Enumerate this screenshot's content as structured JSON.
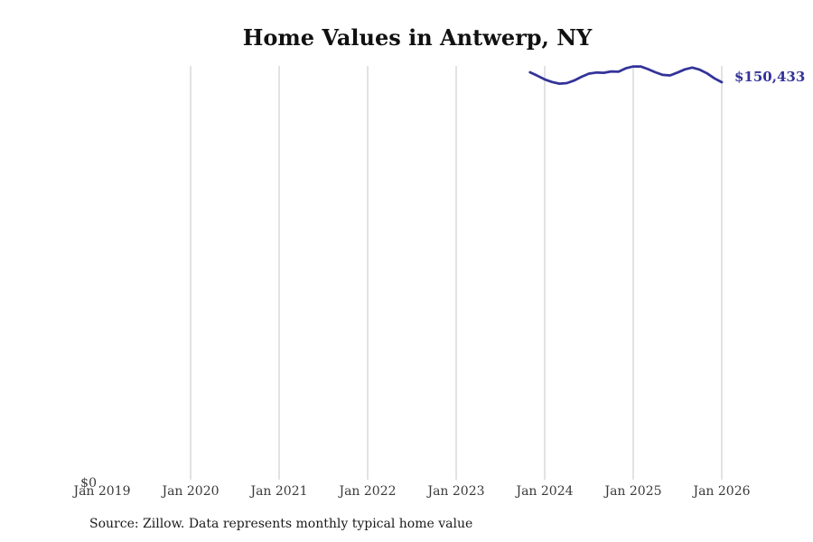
{
  "page": {
    "title": "Home Values in Antwerp, NY",
    "source_note": "Source: Zillow. Data represents monthly typical home value"
  },
  "chart_data": {
    "type": "line",
    "title": "Home Values in Antwerp, NY",
    "xlabel": "",
    "ylabel": "",
    "grid": "vertical",
    "legend": "none",
    "line_color": "#333399",
    "gridline_color": "#c4c4c4",
    "ylim": [
      0,
      156600
    ],
    "y_tick_labels": [
      "$0"
    ],
    "x_tick_labels": [
      "Jan 2019",
      "Jan 2020",
      "Jan 2021",
      "Jan 2022",
      "Jan 2023",
      "Jan 2024",
      "Jan 2025",
      "Jan 2026"
    ],
    "x_ticks_with_gridline": [
      false,
      true,
      true,
      true,
      true,
      true,
      true,
      true
    ],
    "end_label": "$150,433",
    "x": [
      "2023-11",
      "2023-12",
      "2024-01",
      "2024-02",
      "2024-03",
      "2024-04",
      "2024-05",
      "2024-06",
      "2024-07",
      "2024-08",
      "2024-09",
      "2024-10",
      "2024-11",
      "2024-12",
      "2025-01",
      "2025-02",
      "2025-03",
      "2025-04",
      "2025-05",
      "2025-06",
      "2025-07",
      "2025-08",
      "2025-09",
      "2025-10",
      "2025-11",
      "2025-12",
      "2026-01"
    ],
    "series": [
      {
        "name": "Monthly typical home value",
        "color": "#333399",
        "values": [
          154200,
          152900,
          151500,
          150500,
          149900,
          150100,
          151100,
          152500,
          153700,
          154100,
          154000,
          154500,
          154400,
          155700,
          156400,
          156400,
          155400,
          154200,
          153200,
          153000,
          154100,
          155300,
          156000,
          155200,
          153800,
          151900,
          150433
        ]
      }
    ]
  }
}
